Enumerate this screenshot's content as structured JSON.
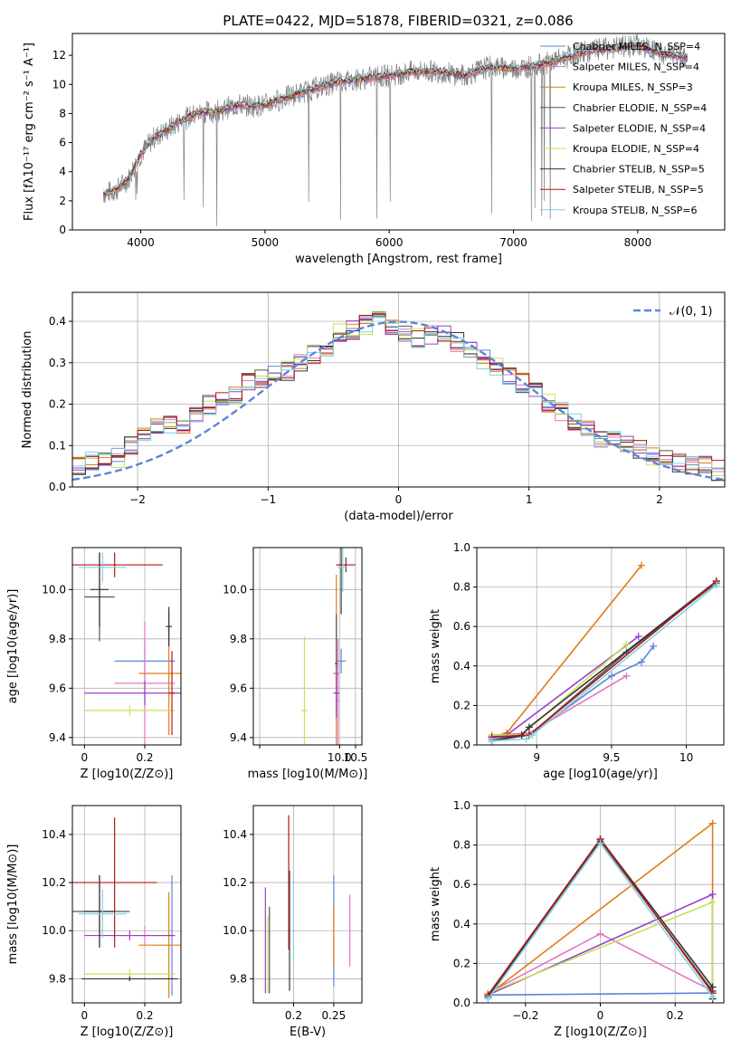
{
  "figure_title": "PLATE=0422, MJD=51878, FIBERID=0321, z=0.086",
  "colors": {
    "Chabrier MILES": "#5b85d8",
    "Salpeter MILES": "#e377c2",
    "Kroupa MILES": "#e07b1a",
    "Chabrier ELODIE": "#555555",
    "Salpeter ELODIE": "#9b3fc5",
    "Kroupa ELODIE": "#c5e35a",
    "Chabrier STELIB": "#333333",
    "Salpeter STELIB": "#b01818",
    "Kroupa STELIB": "#7fd3e3",
    "data": "#808080",
    "normal": "#5b85d8"
  },
  "chart_data": [
    {
      "id": "spectrum",
      "type": "line",
      "title": "PLATE=0422, MJD=51878, FIBERID=0321, z=0.086",
      "xlabel": "wavelength [Angstrom, rest frame]",
      "ylabel": "Flux [fλ10⁻¹⁷ erg cm⁻² s⁻¹ A⁻¹]",
      "xlim": [
        3450,
        8700
      ],
      "ylim": [
        0,
        13.5
      ],
      "xticks": [
        4000,
        5000,
        6000,
        7000,
        8000
      ],
      "yticks": [
        0,
        2,
        4,
        6,
        8,
        10,
        12
      ],
      "legend_position": "top-right",
      "legend": [
        "Chabrier MILES, N_SSP=4",
        "Salpeter MILES, N_SSP=4",
        "Kroupa MILES, N_SSP=3",
        "Chabrier ELODIE, N_SSP=4",
        "Salpeter ELODIE, N_SSP=4",
        "Kroupa ELODIE, N_SSP=4",
        "Chabrier STELIB, N_SSP=5",
        "Salpeter STELIB, N_SSP=5",
        "Kroupa STELIB, N_SSP=6"
      ],
      "x": [
        3700,
        3800,
        3900,
        4000,
        4100,
        4200,
        4300,
        4400,
        4500,
        4600,
        4700,
        4800,
        4900,
        5000,
        5200,
        5400,
        5600,
        5800,
        6000,
        6200,
        6400,
        6600,
        6800,
        7000,
        7200,
        7400,
        7600,
        7800,
        8000,
        8200,
        8400
      ],
      "model_flux": [
        2.5,
        2.7,
        3.5,
        5.2,
        6.3,
        6.8,
        7.4,
        7.8,
        8.1,
        8.1,
        8.4,
        8.6,
        8.5,
        8.6,
        9.2,
        9.7,
        10.2,
        10.4,
        10.6,
        10.9,
        10.9,
        10.6,
        11.2,
        11.1,
        11.3,
        11.8,
        12.3,
        12.5,
        12.7,
        12.1,
        11.9
      ]
    },
    {
      "id": "residuals",
      "type": "line",
      "xlabel": "(data-model)/error",
      "ylabel": "Normed distribution",
      "xlim": [
        -2.5,
        2.5
      ],
      "ylim": [
        0,
        0.47
      ],
      "xticks": [
        -2,
        -1,
        0,
        1,
        2
      ],
      "yticks": [
        0.0,
        0.1,
        0.2,
        0.3,
        0.4
      ],
      "legend_position": "top-right",
      "legend": [
        "𝒩(0, 1)"
      ],
      "bins": [
        -2.5,
        -2.4,
        -2.3,
        -2.2,
        -2.1,
        -2.0,
        -1.9,
        -1.8,
        -1.7,
        -1.6,
        -1.5,
        -1.4,
        -1.3,
        -1.2,
        -1.1,
        -1.0,
        -0.9,
        -0.8,
        -0.7,
        -0.6,
        -0.5,
        -0.4,
        -0.3,
        -0.2,
        -0.1,
        0.0,
        0.1,
        0.2,
        0.3,
        0.4,
        0.5,
        0.6,
        0.7,
        0.8,
        0.9,
        1.0,
        1.1,
        1.2,
        1.3,
        1.4,
        1.5,
        1.6,
        1.7,
        1.8,
        1.9,
        2.0,
        2.1,
        2.2,
        2.3,
        2.4
      ],
      "hist_heights": [
        0.05,
        0.06,
        0.07,
        0.07,
        0.1,
        0.12,
        0.14,
        0.15,
        0.15,
        0.17,
        0.2,
        0.21,
        0.22,
        0.25,
        0.26,
        0.27,
        0.28,
        0.3,
        0.32,
        0.34,
        0.37,
        0.38,
        0.39,
        0.4,
        0.39,
        0.37,
        0.36,
        0.37,
        0.37,
        0.35,
        0.33,
        0.31,
        0.29,
        0.27,
        0.25,
        0.23,
        0.2,
        0.18,
        0.16,
        0.14,
        0.12,
        0.11,
        0.1,
        0.09,
        0.07,
        0.07,
        0.06,
        0.05,
        0.05,
        0.04
      ]
    },
    {
      "id": "z-age",
      "type": "scatter",
      "xlabel": "Z [log10(Z/Z⊙)]",
      "ylabel": "age  [log10(age/yr)]",
      "xlim": [
        -0.04,
        0.32
      ],
      "ylim": [
        9.37,
        10.17
      ],
      "xticks": [
        0.0,
        0.2
      ],
      "yticks": [
        9.4,
        9.6,
        9.8,
        10.0
      ],
      "points": [
        {
          "name": "Chabrier MILES",
          "x": 0.2,
          "y": 9.71,
          "xerr": 0.1,
          "yerr": 0.08
        },
        {
          "name": "Salpeter MILES",
          "x": 0.2,
          "y": 9.62,
          "xerr": 0.1,
          "yerr": 0.25
        },
        {
          "name": "Kroupa MILES",
          "x": 0.28,
          "y": 9.66,
          "xerr": 0.1,
          "yerr": 0.25
        },
        {
          "name": "Chabrier ELODIE",
          "x": 0.05,
          "y": 9.97,
          "xerr": 0.05,
          "yerr": 0.18
        },
        {
          "name": "Salpeter ELODIE",
          "x": 0.2,
          "y": 9.58,
          "xerr": 0.2,
          "yerr": 0.05
        },
        {
          "name": "Kroupa ELODIE",
          "x": 0.15,
          "y": 9.51,
          "xerr": 0.15,
          "yerr": 0.02
        },
        {
          "name": "Chabrier STELIB",
          "x": 0.05,
          "y": 10.0,
          "xerr": 0.03,
          "yerr": 0.15
        },
        {
          "name": "Salpeter STELIB",
          "x": 0.1,
          "y": 10.1,
          "xerr": 0.16,
          "yerr": 0.05
        },
        {
          "name": "Kroupa STELIB",
          "x": 0.06,
          "y": 10.09,
          "xerr": 0.08,
          "yerr": 0.06
        },
        {
          "name": "Chabrier STELIB",
          "x": 0.28,
          "y": 9.85,
          "xerr": 0.01,
          "yerr": 0.08
        },
        {
          "name": "Salpeter STELIB",
          "x": 0.29,
          "y": 9.58,
          "xerr": 0.01,
          "yerr": 0.17
        }
      ]
    },
    {
      "id": "mass-age",
      "type": "scatter",
      "xlabel": "mass [log10(M/M⊙)]",
      "ylabel": "",
      "xlim": [
        7.3,
        10.7
      ],
      "ylim": [
        9.37,
        10.17
      ],
      "xticks": [
        7.5,
        10.0,
        10.5
      ],
      "xtick_labels": [
        "",
        "10.0",
        "10.5"
      ],
      "yticks": [
        9.4,
        9.6,
        9.8,
        10.0
      ],
      "points": [
        {
          "name": "Chabrier MILES",
          "x": 10.05,
          "y": 9.71,
          "xerr": 0.15,
          "yerr": 0.05
        },
        {
          "name": "Salpeter MILES",
          "x": 9.95,
          "y": 9.55,
          "xerr": 0.05,
          "yerr": 0.25
        },
        {
          "name": "Kroupa MILES",
          "x": 9.9,
          "y": 9.66,
          "xerr": 0.1,
          "yerr": 0.4
        },
        {
          "name": "Chabrier ELODIE",
          "x": 9.9,
          "y": 9.7,
          "xerr": 0.05,
          "yerr": 0.2
        },
        {
          "name": "Salpeter ELODIE",
          "x": 9.9,
          "y": 9.58,
          "xerr": 0.1,
          "yerr": 0.1
        },
        {
          "name": "Kroupa ELODIE",
          "x": 8.9,
          "y": 9.51,
          "xerr": 0.1,
          "yerr": 0.3
        },
        {
          "name": "Chabrier STELIB",
          "x": 10.05,
          "y": 10.1,
          "xerr": 0.15,
          "yerr": 0.2
        },
        {
          "name": "Salpeter STELIB",
          "x": 10.2,
          "y": 10.1,
          "xerr": 0.3,
          "yerr": 0.03
        },
        {
          "name": "Kroupa STELIB",
          "x": 10.1,
          "y": 10.09,
          "xerr": 0.15,
          "yerr": 0.1
        }
      ]
    },
    {
      "id": "age-weight",
      "type": "line",
      "xlabel": "age  [log10(age/yr)]",
      "ylabel": "mass weight",
      "xlim": [
        8.6,
        10.25
      ],
      "ylim": [
        0,
        1.0
      ],
      "xticks": [
        9.0,
        9.5,
        10.0
      ],
      "yticks": [
        0.0,
        0.2,
        0.4,
        0.6,
        0.8,
        1.0
      ],
      "series": [
        {
          "name": "Chabrier MILES",
          "x": [
            8.7,
            8.95,
            9.5,
            9.7,
            9.78
          ],
          "y": [
            0.03,
            0.05,
            0.35,
            0.42,
            0.5
          ]
        },
        {
          "name": "Salpeter MILES",
          "x": [
            8.7,
            8.95,
            9.6
          ],
          "y": [
            0.05,
            0.06,
            0.35
          ]
        },
        {
          "name": "Kroupa MILES",
          "x": [
            8.7,
            8.8,
            9.7
          ],
          "y": [
            0.04,
            0.06,
            0.91
          ]
        },
        {
          "name": "Chabrier ELODIE",
          "x": [
            8.7,
            8.95,
            9.6,
            10.2
          ],
          "y": [
            0.02,
            0.05,
            0.47,
            0.82
          ]
        },
        {
          "name": "Salpeter ELODIE",
          "x": [
            8.7,
            8.8,
            9.68
          ],
          "y": [
            0.04,
            0.05,
            0.55
          ]
        },
        {
          "name": "Kroupa ELODIE",
          "x": [
            8.7,
            8.9,
            9.6
          ],
          "y": [
            0.05,
            0.05,
            0.51
          ]
        },
        {
          "name": "Chabrier STELIB",
          "x": [
            8.7,
            8.9,
            8.95,
            10.2
          ],
          "y": [
            0.02,
            0.05,
            0.09,
            0.83
          ]
        },
        {
          "name": "Salpeter STELIB",
          "x": [
            8.7,
            8.95,
            10.2
          ],
          "y": [
            0.04,
            0.05,
            0.83
          ]
        },
        {
          "name": "Kroupa STELIB",
          "x": [
            8.7,
            8.93,
            8.97,
            10.2
          ],
          "y": [
            0.02,
            0.03,
            0.05,
            0.81
          ]
        }
      ]
    },
    {
      "id": "z-mass",
      "type": "scatter",
      "xlabel": "Z [log10(Z/Z⊙)]",
      "ylabel": "mass [log10(M/M⊙)]",
      "xlim": [
        -0.04,
        0.32
      ],
      "ylim": [
        9.7,
        10.52
      ],
      "xticks": [
        0.0,
        0.2
      ],
      "yticks": [
        9.8,
        10.0,
        10.2,
        10.4
      ],
      "points": [
        {
          "name": "Chabrier MILES",
          "x": 0.29,
          "y": 9.98,
          "xerr": 0.01,
          "yerr": 0.25
        },
        {
          "name": "Salpeter MILES",
          "x": 0.2,
          "y": 9.98,
          "xerr": 0.1,
          "yerr": 0.04
        },
        {
          "name": "Kroupa MILES",
          "x": 0.28,
          "y": 9.94,
          "xerr": 0.1,
          "yerr": 0.22
        },
        {
          "name": "Chabrier ELODIE",
          "x": 0.05,
          "y": 10.08,
          "xerr": 0.1,
          "yerr": 0.15
        },
        {
          "name": "Salpeter ELODIE",
          "x": 0.15,
          "y": 9.98,
          "xerr": 0.15,
          "yerr": 0.02
        },
        {
          "name": "Kroupa ELODIE",
          "x": 0.15,
          "y": 9.82,
          "xerr": 0.15,
          "yerr": 0.02
        },
        {
          "name": "Chabrier STELIB",
          "x": 0.05,
          "y": 10.08,
          "xerr": 0.05,
          "yerr": 0.15
        },
        {
          "name": "Salpeter STELIB",
          "x": 0.1,
          "y": 10.2,
          "xerr": 0.14,
          "yerr": 0.27
        },
        {
          "name": "Kroupa STELIB",
          "x": 0.06,
          "y": 10.07,
          "xerr": 0.08,
          "yerr": 0.1
        },
        {
          "name": "Chabrier STELIB",
          "x": 0.15,
          "y": 9.8,
          "xerr": 0.16,
          "yerr": 0.01
        }
      ]
    },
    {
      "id": "ebv-mass",
      "type": "scatter",
      "xlabel": "E(B-V)",
      "ylabel": "",
      "xlim": [
        0.15,
        0.285
      ],
      "ylim": [
        9.7,
        10.52
      ],
      "xticks": [
        0.2,
        0.25
      ],
      "yticks": [
        9.8,
        10.0,
        10.2,
        10.4
      ],
      "points": [
        {
          "name": "Chabrier MILES",
          "x": 0.25,
          "y": 10.0,
          "xerr": 0,
          "yerr": 0.23
        },
        {
          "name": "Salpeter MILES",
          "x": 0.27,
          "y": 10.0,
          "xerr": 0,
          "yerr": 0.15
        },
        {
          "name": "Kroupa MILES",
          "x": 0.25,
          "y": 9.98,
          "xerr": 0,
          "yerr": 0.13
        },
        {
          "name": "Chabrier ELODIE",
          "x": 0.17,
          "y": 9.92,
          "xerr": 0,
          "yerr": 0.18
        },
        {
          "name": "Salpeter ELODIE",
          "x": 0.165,
          "y": 9.96,
          "xerr": 0,
          "yerr": 0.22
        },
        {
          "name": "Kroupa ELODIE",
          "x": 0.168,
          "y": 9.9,
          "xerr": 0,
          "yerr": 0.16
        },
        {
          "name": "Chabrier STELIB",
          "x": 0.195,
          "y": 10.0,
          "xerr": 0,
          "yerr": 0.25
        },
        {
          "name": "Salpeter STELIB",
          "x": 0.194,
          "y": 10.2,
          "xerr": 0,
          "yerr": 0.28
        },
        {
          "name": "Kroupa STELIB",
          "x": 0.2,
          "y": 10.05,
          "xerr": 0,
          "yerr": 0.18
        }
      ]
    },
    {
      "id": "z-weight",
      "type": "line",
      "xlabel": "Z [log10(Z/Z⊙)]",
      "ylabel": "mass weight",
      "xlim": [
        -0.33,
        0.33
      ],
      "ylim": [
        0,
        1.0
      ],
      "xticks": [
        -0.2,
        0.0,
        0.2
      ],
      "yticks": [
        0.0,
        0.2,
        0.4,
        0.6,
        0.8,
        1.0
      ],
      "series": [
        {
          "name": "Chabrier MILES",
          "x": [
            -0.3,
            0.3
          ],
          "y": [
            0.04,
            0.05
          ]
        },
        {
          "name": "Salpeter MILES",
          "x": [
            -0.3,
            0.0,
            0.3
          ],
          "y": [
            0.05,
            0.35,
            0.06
          ]
        },
        {
          "name": "Kroupa MILES",
          "x": [
            -0.3,
            0.3,
            0.3
          ],
          "y": [
            0.04,
            0.91,
            0.05
          ]
        },
        {
          "name": "Chabrier ELODIE",
          "x": [
            -0.3,
            0.0,
            0.3
          ],
          "y": [
            0.04,
            0.82,
            0.06
          ]
        },
        {
          "name": "Salpeter ELODIE",
          "x": [
            -0.3,
            0.3,
            0.3
          ],
          "y": [
            0.04,
            0.55,
            0.05
          ]
        },
        {
          "name": "Kroupa ELODIE",
          "x": [
            -0.3,
            0.3,
            0.3
          ],
          "y": [
            0.05,
            0.51,
            0.05
          ]
        },
        {
          "name": "Chabrier STELIB",
          "x": [
            -0.3,
            0.0,
            0.3,
            0.3
          ],
          "y": [
            0.03,
            0.83,
            0.08,
            0.02
          ]
        },
        {
          "name": "Salpeter STELIB",
          "x": [
            -0.3,
            0.0,
            0.3
          ],
          "y": [
            0.04,
            0.83,
            0.05
          ]
        },
        {
          "name": "Kroupa STELIB",
          "x": [
            -0.3,
            0.0,
            0.3
          ],
          "y": [
            0.02,
            0.81,
            0.03
          ]
        }
      ]
    }
  ]
}
